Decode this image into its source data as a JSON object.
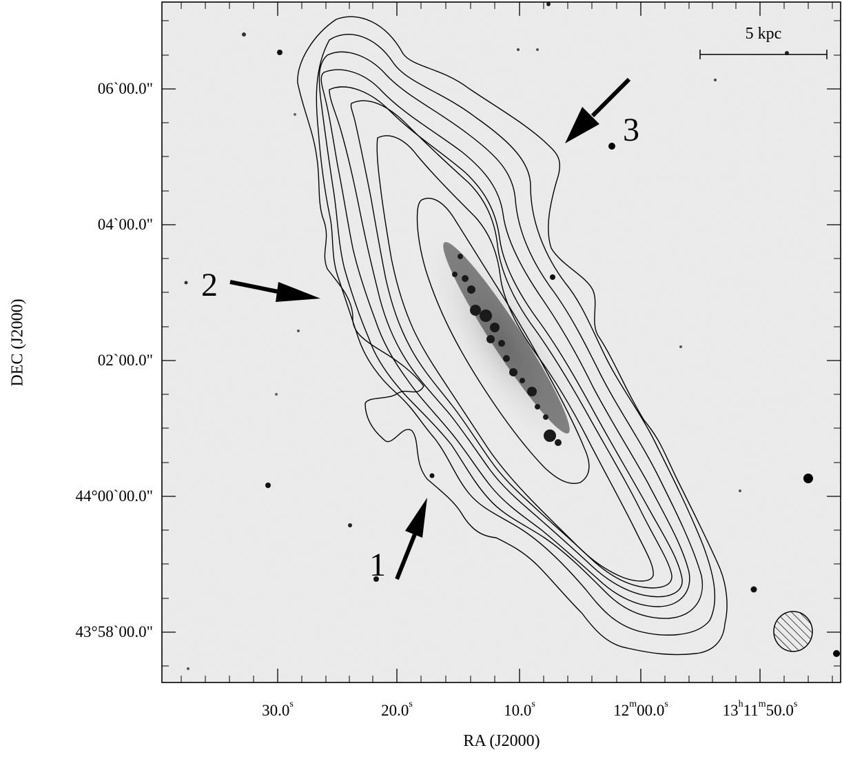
{
  "axes": {
    "x_title": "RA (J2000)",
    "y_title": "DEC (J2000)",
    "x_ticks": [
      {
        "main": "30.0",
        "sup": "s"
      },
      {
        "main": "20.0",
        "sup": "s"
      },
      {
        "main": "10.0",
        "sup": "s"
      },
      {
        "pre": "12",
        "pre_sup": "m",
        "main": "00.0",
        "sup": "s"
      },
      {
        "pre": "13",
        "pre_sup": "h",
        "mid": "11",
        "mid_sup": "m",
        "main": "50.0",
        "sup": "s"
      }
    ],
    "y_ticks": [
      "06`00.0\"",
      "04`00.0\"",
      "02`00.0\"",
      "44°00`00.0\"",
      "43°58`00.0\""
    ]
  },
  "scale_bar": {
    "label": "5 kpc"
  },
  "arrows": [
    {
      "label": "1"
    },
    {
      "label": "2"
    },
    {
      "label": "3"
    }
  ],
  "colors": {
    "background": "#efefef",
    "ink": "#000000",
    "galaxy_core": "#1a1a1a"
  }
}
